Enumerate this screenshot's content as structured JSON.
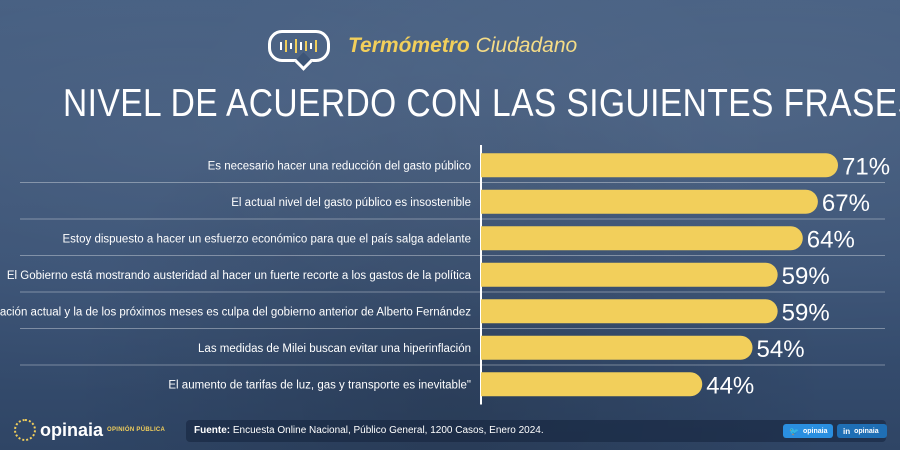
{
  "header": {
    "title_bold": "Termómetro",
    "title_rest": "Ciudadano",
    "icon": "sound-wave-speech-bubble-icon"
  },
  "main_title": "NIVEL DE ACUERDO CON LAS SIGUIENTES FRASES:",
  "chart_data": {
    "type": "bar",
    "orientation": "horizontal",
    "categories": [
      "Es necesario hacer una reducción del gasto público",
      "El actual nivel del gasto público es insostenible",
      "Estoy dispuesto a hacer un esfuerzo económico para que el país salga adelante",
      "El Gobierno está mostrando austeridad al hacer un fuerte recorte a los gastos de la política",
      "La inflación actual y la de los próximos meses es culpa del gobierno anterior de Alberto Fernández",
      "Las medidas de Milei buscan evitar una hiperinflación",
      "El aumento de tarifas de luz, gas y transporte es inevitable\""
    ],
    "values": [
      71,
      67,
      64,
      59,
      59,
      54,
      44
    ],
    "value_labels": [
      "71%",
      "67%",
      "64%",
      "59%",
      "59%",
      "54%",
      "44%"
    ],
    "unit": "%",
    "xlim": [
      0,
      100
    ],
    "grid": false,
    "bar_color": "#f2cf5b"
  },
  "footer": {
    "source_label": "Fuente:",
    "source_text": "Encuesta Online Nacional, Público General, 1200 Casos, Enero 2024.",
    "logo_text": "opinaia",
    "logo_sub": "OPINIÓN PÚBLICA",
    "twitter_label": "opinaia",
    "linkedin_label": "opinaia"
  },
  "colors": {
    "accent": "#f2cf5b",
    "background": "#3d5577",
    "text": "#ffffff"
  }
}
